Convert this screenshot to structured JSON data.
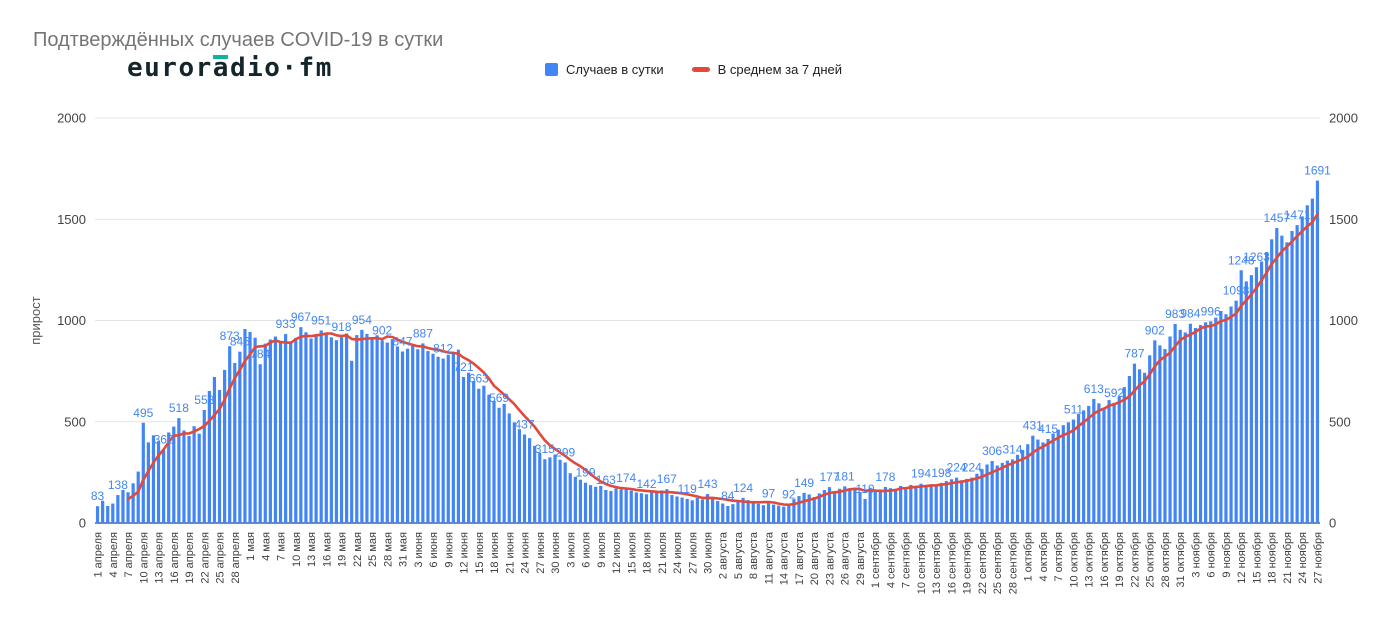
{
  "header": {
    "title": "Подтверждённых случаев COVID-19 в сутки",
    "logo": {
      "part1": "euror",
      "accent": "a",
      "part2": "dio·fm",
      "accent_color": "#12b2a0"
    }
  },
  "legend": {
    "items": [
      {
        "label": "Случаев в сутки",
        "color": "#4285f4",
        "shape": "square"
      },
      {
        "label": "В среднем за 7 дней",
        "color": "#e2493b",
        "shape": "dash"
      }
    ]
  },
  "chart_data": {
    "type": "bar",
    "title": "Подтверждённых случаев COVID-19 в сутки",
    "xlabel": "",
    "ylabel": "прирост",
    "ylim": [
      0,
      2000
    ],
    "yticks": [
      0,
      500,
      1000,
      1500,
      2000
    ],
    "grid": "horizontal",
    "legend_position": "top-center",
    "x_label_step": 3,
    "x_labels": [
      "1 апреля",
      "4 апреля",
      "7 апреля",
      "10 апреля",
      "13 апреля",
      "16 апреля",
      "19 апреля",
      "22 апреля",
      "25 апреля",
      "28 апреля",
      "1 мая",
      "4 мая",
      "7 мая",
      "10 мая",
      "13 мая",
      "16 мая",
      "19 мая",
      "22 мая",
      "25 мая",
      "28 мая",
      "31 мая",
      "3 июня",
      "6 июня",
      "9 июня",
      "12 июня",
      "15 июня",
      "18 июня",
      "21 июня",
      "24 июня",
      "27 июня",
      "30 июня",
      "3 июля",
      "6 июля",
      "9 июля",
      "12 июля",
      "15 июля",
      "18 июля",
      "21 июля",
      "24 июля",
      "27 июля",
      "30 июля",
      "2 августа",
      "5 августа",
      "8 августа",
      "11 августа",
      "14 августа",
      "17 августа",
      "20 августа",
      "23 августа",
      "26 августа",
      "29 августа",
      "1 сентября",
      "4 сентября",
      "7 сентября",
      "10 сентября",
      "13 сентября",
      "16 сентября",
      "19 сентября",
      "22 сентября",
      "25 сентября",
      "28 сентября",
      "1 октября",
      "4 октября",
      "7 октября",
      "10 октября",
      "13 октября",
      "16 октября",
      "19 октября",
      "22 октября",
      "25 октября",
      "28 октября",
      "31 октября",
      "3 ноября",
      "6 ноября",
      "9 ноября",
      "12 ноября",
      "15 ноября",
      "18 ноября",
      "21 ноября",
      "24 ноября",
      "27 ноября"
    ],
    "series": [
      {
        "name": "Случаев в сутки",
        "type": "bar",
        "color": "#4285f4",
        "values": [
          83,
          110,
          84,
          96,
          138,
          163,
          152,
          196,
          254,
          495,
          398,
          433,
          404,
          362,
          447,
          476,
          518,
          457,
          430,
          478,
          441,
          558,
          652,
          721,
          657,
          756,
          873,
          790,
          846,
          958,
          943,
          915,
          784,
          886,
          906,
          921,
          897,
          933,
          897,
          914,
          967,
          942,
          911,
          926,
          951,
          938,
          917,
          903,
          918,
          936,
          801,
          928,
          954,
          934,
          912,
          927,
          902,
          891,
          908,
          872,
          847,
          861,
          874,
          858,
          887,
          849,
          836,
          821,
          812,
          831,
          843,
          856,
          721,
          742,
          701,
          663,
          678,
          634,
          603,
          569,
          588,
          541,
          497,
          463,
          437,
          419,
          381,
          347,
          315,
          324,
          338,
          312,
          299,
          246,
          228,
          214,
          199,
          187,
          179,
          183,
          163,
          158,
          171,
          166,
          174,
          160,
          151,
          147,
          142,
          156,
          149,
          161,
          167,
          138,
          131,
          126,
          119,
          112,
          124,
          116,
          143,
          129,
          109,
          96,
          84,
          93,
          107,
          124,
          113,
          101,
          95,
          88,
          97,
          91,
          86,
          81,
          92,
          118,
          133,
          149,
          141,
          128,
          146,
          163,
          177,
          157,
          169,
          181,
          171,
          164,
          152,
          119,
          174,
          158,
          166,
          178,
          172,
          169,
          183,
          176,
          188,
          181,
          194,
          187,
          191,
          185,
          198,
          207,
          216,
          224,
          211,
          218,
          224,
          243,
          266,
          289,
          306,
          284,
          297,
          308,
          314,
          337,
          361,
          389,
          431,
          412,
          398,
          415,
          442,
          461,
          483,
          497,
          511,
          538,
          556,
          578,
          613,
          591,
          569,
          607,
          592,
          624,
          671,
          726,
          787,
          759,
          742,
          828,
          902,
          877,
          859,
          921,
          983,
          954,
          941,
          984,
          963,
          978,
          991,
          996,
          1014,
          1047,
          1031,
          1069,
          1098,
          1248,
          1193,
          1224,
          1263,
          1291,
          1338,
          1401,
          1457,
          1419,
          1386,
          1442,
          1471,
          1514,
          1569,
          1602,
          1691
        ]
      },
      {
        "name": "В среднем за 7 дней",
        "type": "line",
        "color": "#e2493b",
        "derived_from": "trailing 7-day rolling mean of bar series"
      }
    ],
    "labeled_points": [
      [
        0,
        83
      ],
      [
        4,
        138
      ],
      [
        9,
        495
      ],
      [
        13,
        362
      ],
      [
        16,
        518
      ],
      [
        21,
        558
      ],
      [
        26,
        873
      ],
      [
        28,
        846
      ],
      [
        32,
        784
      ],
      [
        37,
        933
      ],
      [
        40,
        967
      ],
      [
        44,
        951
      ],
      [
        48,
        918
      ],
      [
        52,
        954
      ],
      [
        56,
        902
      ],
      [
        60,
        847
      ],
      [
        64,
        887
      ],
      [
        68,
        812
      ],
      [
        72,
        721
      ],
      [
        75,
        663
      ],
      [
        79,
        569
      ],
      [
        84,
        437
      ],
      [
        88,
        315
      ],
      [
        92,
        299
      ],
      [
        96,
        199
      ],
      [
        100,
        163
      ],
      [
        104,
        174
      ],
      [
        108,
        142
      ],
      [
        112,
        167
      ],
      [
        116,
        119
      ],
      [
        120,
        143
      ],
      [
        124,
        84
      ],
      [
        127,
        124
      ],
      [
        132,
        97
      ],
      [
        136,
        92
      ],
      [
        139,
        149
      ],
      [
        144,
        177
      ],
      [
        147,
        181
      ],
      [
        151,
        119
      ],
      [
        155,
        178
      ],
      [
        162,
        194
      ],
      [
        166,
        198
      ],
      [
        169,
        224
      ],
      [
        172,
        224
      ],
      [
        176,
        306
      ],
      [
        180,
        314
      ],
      [
        184,
        431
      ],
      [
        187,
        415
      ],
      [
        192,
        511
      ],
      [
        196,
        613
      ],
      [
        200,
        592
      ],
      [
        204,
        787
      ],
      [
        208,
        902
      ],
      [
        212,
        983
      ],
      [
        215,
        984
      ],
      [
        219,
        996
      ],
      [
        224,
        1098
      ],
      [
        225,
        1248
      ],
      [
        228,
        1263
      ],
      [
        232,
        1457
      ],
      [
        236,
        1471
      ],
      [
        240,
        1691
      ]
    ]
  }
}
